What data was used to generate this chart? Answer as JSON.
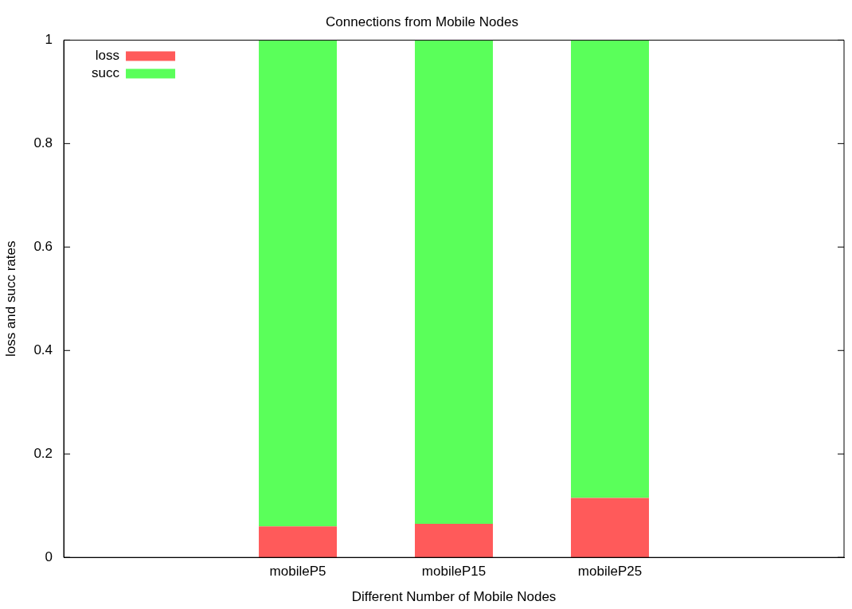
{
  "chart_data": {
    "type": "bar",
    "title": "Connections from Mobile Nodes",
    "xlabel": "Different Number of Mobile Nodes",
    "ylabel": "loss and succ rates",
    "categories": [
      null,
      "mobileP5",
      "mobileP15",
      "mobileP25",
      null
    ],
    "series": [
      {
        "name": "loss",
        "color": "#ff5a5a",
        "values": [
          null,
          0.06,
          0.065,
          0.115,
          null
        ]
      },
      {
        "name": "succ",
        "color": "#5aff5a",
        "values": [
          null,
          0.94,
          0.935,
          0.885,
          null
        ]
      }
    ],
    "stacked": true,
    "ylim": [
      0,
      1
    ],
    "yticks": [
      0,
      0.2,
      0.4,
      0.6,
      0.8,
      1
    ],
    "grid": false,
    "legend": "top left"
  }
}
